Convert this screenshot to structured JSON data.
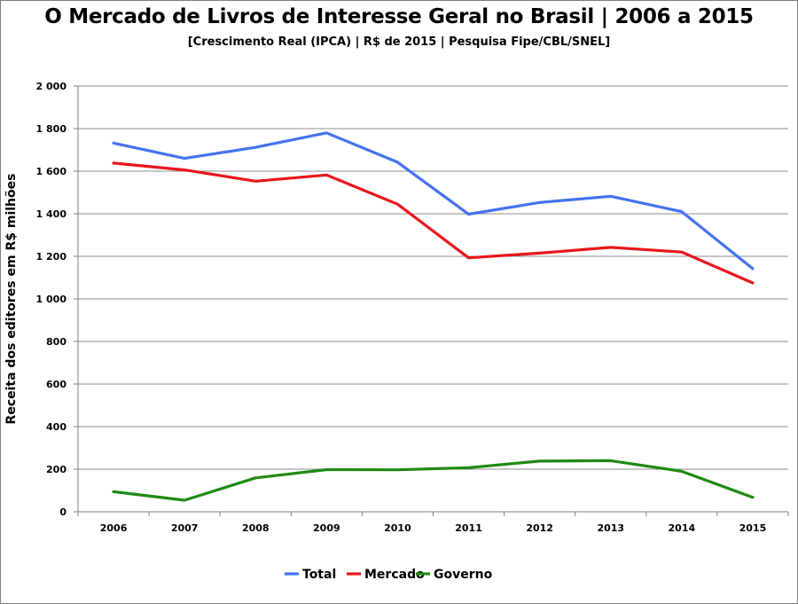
{
  "chart_data": {
    "type": "line",
    "title": "O Mercado de Livros de Interesse Geral no Brasil | 2006 a 2015",
    "subtitle": "[Crescimento Real (IPCA) | R$ de 2015 | Pesquisa Fipe/CBL/SNEL]",
    "xlabel": "",
    "ylabel": "Receita dos editores em R$ milhões",
    "x": [
      "2006",
      "2007",
      "2008",
      "2009",
      "2010",
      "2011",
      "2012",
      "2013",
      "2014",
      "2015"
    ],
    "ylim": [
      0,
      2000
    ],
    "yticks": [
      {
        "value": 0,
        "label": "0"
      },
      {
        "value": 200,
        "label": "200"
      },
      {
        "value": 400,
        "label": "400"
      },
      {
        "value": 600,
        "label": "600"
      },
      {
        "value": 800,
        "label": "800"
      },
      {
        "value": 1000,
        "label": "1 000"
      },
      {
        "value": 1200,
        "label": "1 200"
      },
      {
        "value": 1400,
        "label": "1 400"
      },
      {
        "value": 1600,
        "label": "1 600"
      },
      {
        "value": 1800,
        "label": "1 800"
      },
      {
        "value": 2000,
        "label": "2 000"
      }
    ],
    "grid": true,
    "legend": "bottom",
    "series": [
      {
        "name": "Total",
        "color": "#4472f0",
        "values": [
          1732,
          1660,
          1712,
          1780,
          1642,
          1398,
          1453,
          1482,
          1410,
          1142
        ]
      },
      {
        "name": "Mercado",
        "color": "#e8161d",
        "values": [
          1638,
          1606,
          1553,
          1582,
          1445,
          1193,
          1215,
          1242,
          1220,
          1075
        ]
      },
      {
        "name": "Governo",
        "color": "#1f8a12",
        "values": [
          94,
          54,
          159,
          198,
          197,
          207,
          238,
          240,
          190,
          68
        ]
      }
    ]
  }
}
